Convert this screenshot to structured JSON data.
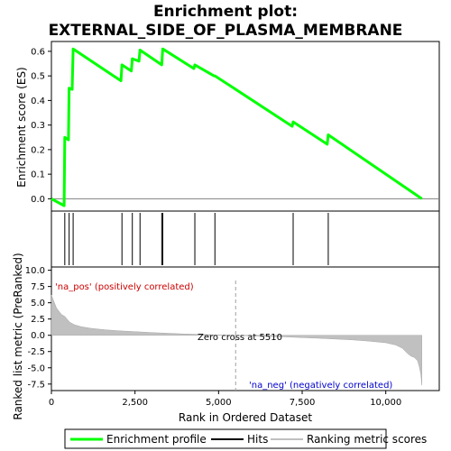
{
  "chart_data": {
    "type": "line",
    "title_line1": "Enrichment plot:",
    "title_line2": "EXTERNAL_SIDE_OF_PLASMA_MEMBRANE",
    "top_panel": {
      "ylabel": "Enrichment score (ES)",
      "ylim": [
        -0.05,
        0.64
      ],
      "yticks": [
        0.0,
        0.1,
        0.2,
        0.3,
        0.4,
        0.5,
        0.6
      ],
      "ytick_labels": [
        "0.0",
        "0.1",
        "0.2",
        "0.3",
        "0.4",
        "0.5",
        "0.6"
      ],
      "series": [
        {
          "name": "Enrichment profile",
          "color": "#00ff00",
          "x": [
            0,
            380,
            400,
            510,
            530,
            620,
            650,
            2080,
            2110,
            2390,
            2420,
            2620,
            2650,
            3300,
            3330,
            4260,
            4290,
            4860,
            4890,
            7200,
            7230,
            8250,
            8280,
            11080
          ],
          "y": [
            0.0,
            -0.028,
            0.25,
            0.24,
            0.45,
            0.445,
            0.61,
            0.48,
            0.545,
            0.52,
            0.57,
            0.56,
            0.605,
            0.545,
            0.61,
            0.53,
            0.545,
            0.5,
            0.5,
            0.295,
            0.313,
            0.222,
            0.26,
            0.0
          ]
        }
      ]
    },
    "hits": {
      "name": "Hits",
      "positions": [
        400,
        530,
        650,
        2110,
        2420,
        2650,
        3300,
        3330,
        4290,
        4890,
        7230,
        8280
      ]
    },
    "bottom_panel": {
      "ylabel": "Ranked list metric (PreRanked)",
      "ylim": [
        -8.5,
        10.5
      ],
      "yticks": [
        10.0,
        7.5,
        5.0,
        2.5,
        0.0,
        -2.5,
        -5.0,
        -7.5
      ],
      "ytick_labels": [
        "10.0",
        "7.5",
        "5.0",
        "2.5",
        "0.0",
        "-2.5",
        "-5.0",
        "-7.5"
      ],
      "series": [
        {
          "name": "Ranking metric scores",
          "color": "#c0c0c0",
          "x": [
            0,
            50,
            150,
            300,
            400,
            450,
            550,
            700,
            900,
            1200,
            1600,
            2000,
            2500,
            3000,
            3500,
            4000,
            4500,
            5000,
            5510,
            6000,
            7000,
            8000,
            9000,
            9500,
            10000,
            10300,
            10500,
            10650,
            10750,
            10850,
            10950,
            11000,
            11050,
            11080
          ],
          "y": [
            6.2,
            5.5,
            4.2,
            3.2,
            2.9,
            2.6,
            2.0,
            1.6,
            1.3,
            1.05,
            0.85,
            0.7,
            0.55,
            0.42,
            0.3,
            0.2,
            0.12,
            0.05,
            0.0,
            -0.1,
            -0.25,
            -0.45,
            -0.7,
            -0.9,
            -1.15,
            -1.5,
            -2.0,
            -2.8,
            -3.2,
            -3.4,
            -3.9,
            -4.8,
            -6.0,
            -7.7
          ]
        }
      ],
      "zero_cross_label": "Zero cross at 5510",
      "zero_cross": 5510,
      "pos_label": "'na_pos' (positively correlated)",
      "neg_label": "'na_neg' (negatively correlated)"
    },
    "colorbar": [
      {
        "from": 0,
        "to": 350,
        "color": "#e8001e"
      },
      {
        "from": 350,
        "to": 1550,
        "color": "#ef4a55"
      },
      {
        "from": 1550,
        "to": 2550,
        "color": "#f4777d"
      },
      {
        "from": 2550,
        "to": 3700,
        "color": "#f799a0"
      },
      {
        "from": 3700,
        "to": 4300,
        "color": "#f9c0cf"
      },
      {
        "from": 4300,
        "to": 5500,
        "color": "#f9c9e4"
      },
      {
        "from": 5500,
        "to": 7500,
        "color": "#dcdcf6"
      },
      {
        "from": 7500,
        "to": 8750,
        "color": "#c6c6f3"
      },
      {
        "from": 8750,
        "to": 9550,
        "color": "#8c8cea"
      },
      {
        "from": 9550,
        "to": 10550,
        "color": "#5a5ade"
      },
      {
        "from": 10550,
        "to": 11100,
        "color": "#1a10c8"
      }
    ],
    "xaxis": {
      "label": "Rank in Ordered Dataset",
      "xlim": [
        0,
        11600
      ],
      "xticks": [
        0,
        2500,
        5000,
        7500,
        10000
      ],
      "xtick_labels": [
        "0",
        "2,500",
        "5,000",
        "7,500",
        "10,000"
      ]
    },
    "legend": {
      "placement": "bottom",
      "entries": [
        "Enrichment profile",
        "Hits",
        "Ranking metric scores"
      ]
    }
  }
}
